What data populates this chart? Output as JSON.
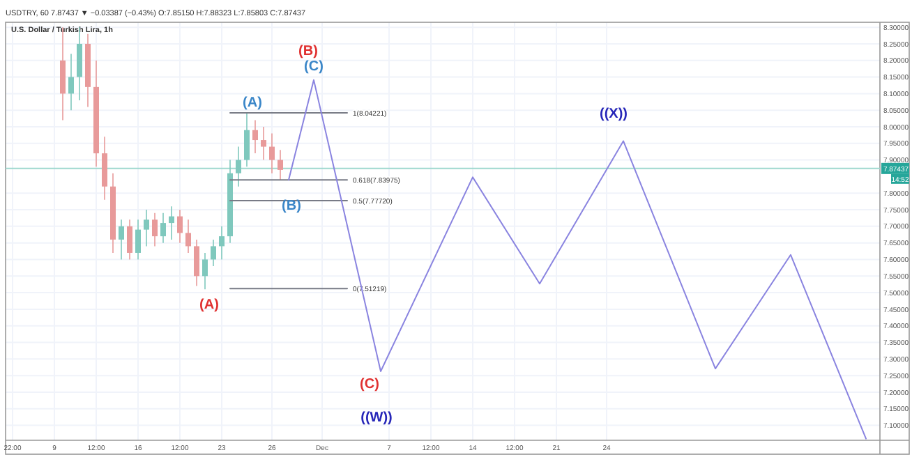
{
  "chart_data": {
    "type": "candlestick",
    "title": "U.S. Dollar / Turkish Lira, 1h",
    "annotations": [
      "USDTRY, 60  7.87437 ▼ −0.03387 (−0.43%)  O:7.85150  H:7.88323  L:7.85803  C:7.87437",
      "14:52",
      "(B)",
      "(C)",
      "(A)",
      "(B)",
      "(A)",
      "(C)",
      "((W))",
      "((X))"
    ],
    "categories": [
      null,
      "22:00",
      null,
      null,
      null,
      null,
      "9",
      null,
      null,
      null,
      null,
      "12:00",
      null,
      null,
      null,
      null,
      "16",
      null,
      null,
      null,
      null,
      "12:00",
      null,
      null,
      null,
      null,
      "23",
      null,
      null,
      null,
      null,
      null,
      "26",
      null,
      null,
      null,
      null,
      null,
      "Dec",
      null,
      null,
      null,
      null,
      null,
      null,
      null,
      "7",
      null,
      null,
      null,
      null,
      "12:00",
      null,
      null,
      null,
      null,
      "14",
      null,
      null,
      null,
      null,
      "12:00",
      null,
      null,
      null,
      null,
      "21",
      null,
      null,
      null,
      null,
      null,
      "24",
      null,
      null,
      null,
      null,
      null,
      null,
      null,
      null,
      null,
      null,
      null,
      null,
      null,
      null,
      null,
      null,
      null,
      null,
      null,
      null,
      null,
      null,
      null,
      null,
      null,
      null,
      null,
      null,
      null,
      null,
      null,
      null
    ],
    "ohlc": [
      null,
      null,
      null,
      null,
      null,
      null,
      null,
      [
        8.2,
        8.3,
        8.02,
        8.1
      ],
      [
        8.1,
        8.22,
        8.05,
        8.15
      ],
      [
        8.15,
        8.3,
        8.08,
        8.25
      ],
      [
        8.25,
        8.28,
        8.06,
        8.12
      ],
      [
        8.12,
        8.2,
        7.88,
        7.92
      ],
      [
        7.92,
        7.97,
        7.78,
        7.82
      ],
      [
        7.82,
        7.86,
        7.62,
        7.66
      ],
      [
        7.66,
        7.72,
        7.6,
        7.7
      ],
      [
        7.7,
        7.72,
        7.6,
        7.62
      ],
      [
        7.62,
        7.72,
        7.6,
        7.69
      ],
      [
        7.69,
        7.75,
        7.64,
        7.72
      ],
      [
        7.72,
        7.74,
        7.64,
        7.67
      ],
      [
        7.67,
        7.74,
        7.65,
        7.71
      ],
      [
        7.71,
        7.76,
        7.66,
        7.73
      ],
      [
        7.73,
        7.75,
        7.65,
        7.68
      ],
      [
        7.68,
        7.72,
        7.62,
        7.64
      ],
      [
        7.64,
        7.66,
        7.52,
        7.55
      ],
      [
        7.55,
        7.62,
        7.51,
        7.6
      ],
      [
        7.6,
        7.66,
        7.58,
        7.64
      ],
      [
        7.64,
        7.7,
        7.6,
        7.67
      ],
      [
        7.67,
        7.9,
        7.65,
        7.86
      ],
      [
        7.86,
        7.94,
        7.82,
        7.9
      ],
      [
        7.9,
        8.04,
        7.88,
        7.99
      ],
      [
        7.99,
        8.02,
        7.92,
        7.96
      ],
      [
        7.96,
        8.0,
        7.9,
        7.94
      ],
      [
        7.94,
        7.98,
        7.86,
        7.9
      ],
      [
        7.9,
        7.93,
        7.84,
        7.87
      ],
      null,
      null,
      null,
      null,
      null,
      null,
      null,
      null,
      null,
      null,
      null,
      null,
      null,
      null,
      null,
      null,
      null,
      null,
      null,
      null,
      null,
      null,
      null,
      null,
      null,
      null,
      null,
      null,
      null,
      null,
      null,
      null,
      null,
      null,
      null,
      null,
      null,
      null,
      null,
      null,
      null,
      null,
      null,
      null,
      null,
      null,
      null,
      null,
      null,
      null,
      null,
      null,
      null,
      null,
      null,
      null,
      null,
      null,
      null,
      null,
      null,
      null,
      null,
      null,
      null,
      null,
      null,
      null,
      null,
      null,
      null
    ],
    "colors": [
      null,
      null,
      null,
      null,
      null,
      null,
      null,
      "#e89a9a",
      "#7fc8bd",
      "#7fc8bd",
      "#e89a9a",
      "#e89a9a",
      "#e89a9a",
      "#e89a9a",
      "#7fc8bd",
      "#e89a9a",
      "#7fc8bd",
      "#7fc8bd",
      "#e89a9a",
      "#7fc8bd",
      "#7fc8bd",
      "#e89a9a",
      "#e89a9a",
      "#e89a9a",
      "#7fc8bd",
      "#7fc8bd",
      "#7fc8bd",
      "#7fc8bd",
      "#7fc8bd",
      "#7fc8bd",
      "#e89a9a",
      "#e89a9a",
      "#e89a9a",
      "#e89a9a",
      null,
      null,
      null,
      null,
      null,
      null,
      null,
      null,
      null,
      null,
      null,
      null,
      null,
      null,
      null,
      null,
      null,
      null,
      null,
      null,
      null,
      null,
      null,
      null,
      null,
      null,
      null,
      null,
      null,
      null,
      null,
      null,
      null,
      null,
      null,
      null,
      null,
      null,
      null,
      null,
      null,
      null,
      null,
      null,
      null,
      null,
      null,
      null,
      null,
      null,
      null,
      null,
      null,
      null,
      null,
      null,
      null,
      null,
      null,
      null,
      null,
      null,
      null,
      null,
      null,
      null,
      null,
      null,
      null,
      null,
      null
    ],
    "series": [
      {
        "type": "line",
        "name": "1(8.04221)",
        "color": "#787b86",
        "values": [
          null,
          null,
          null,
          null,
          null,
          null,
          null,
          null,
          null,
          null,
          null,
          null,
          null,
          null,
          null,
          null,
          null,
          null,
          null,
          null,
          null,
          null,
          null,
          null,
          null,
          null,
          null,
          8.04221,
          null,
          null,
          null,
          null,
          null,
          null,
          null,
          null,
          null,
          null,
          null,
          null,
          null,
          8.04221,
          null,
          null,
          null,
          null,
          null,
          null,
          null,
          null,
          null,
          null,
          null,
          null,
          null,
          null,
          null,
          null,
          null,
          null,
          null,
          null,
          null,
          null,
          null,
          null,
          null,
          null,
          null,
          null,
          null,
          null,
          null,
          null,
          null,
          null,
          null,
          null,
          null,
          null,
          null,
          null,
          null,
          null,
          null,
          null,
          null,
          null,
          null,
          null,
          null,
          null,
          null,
          null,
          null,
          null,
          null,
          null,
          null,
          null,
          null,
          null,
          null,
          null,
          null
        ]
      },
      {
        "type": "line",
        "name": "0.618(7.83975)",
        "color": "#787b86",
        "values": [
          null,
          null,
          null,
          null,
          null,
          null,
          null,
          null,
          null,
          null,
          null,
          null,
          null,
          null,
          null,
          null,
          null,
          null,
          null,
          null,
          null,
          null,
          null,
          null,
          null,
          null,
          null,
          7.83975,
          null,
          null,
          null,
          null,
          null,
          null,
          null,
          null,
          null,
          null,
          null,
          null,
          null,
          7.83975,
          null,
          null,
          null,
          null,
          null,
          null,
          null,
          null,
          null,
          null,
          null,
          null,
          null,
          null,
          null,
          null,
          null,
          null,
          null,
          null,
          null,
          null,
          null,
          null,
          null,
          null,
          null,
          null,
          null,
          null,
          null,
          null,
          null,
          null,
          null,
          null,
          null,
          null,
          null,
          null,
          null,
          null,
          null,
          null,
          null,
          null,
          null,
          null,
          null,
          null,
          null,
          null,
          null,
          null,
          null,
          null,
          null,
          null,
          null,
          null,
          null,
          null,
          null
        ]
      },
      {
        "type": "line",
        "name": "0.5(7.77720)",
        "color": "#787b86",
        "values": [
          null,
          null,
          null,
          null,
          null,
          null,
          null,
          null,
          null,
          null,
          null,
          null,
          null,
          null,
          null,
          null,
          null,
          null,
          null,
          null,
          null,
          null,
          null,
          null,
          null,
          null,
          null,
          7.7772,
          null,
          null,
          null,
          null,
          null,
          null,
          null,
          null,
          null,
          null,
          null,
          null,
          null,
          7.7772,
          null,
          null,
          null,
          null,
          null,
          null,
          null,
          null,
          null,
          null,
          null,
          null,
          null,
          null,
          null,
          null,
          null,
          null,
          null,
          null,
          null,
          null,
          null,
          null,
          null,
          null,
          null,
          null,
          null,
          null,
          null,
          null,
          null,
          null,
          null,
          null,
          null,
          null,
          null,
          null,
          null,
          null,
          null,
          null,
          null,
          null,
          null,
          null,
          null,
          null,
          null,
          null,
          null,
          null,
          null,
          null,
          null,
          null,
          null,
          null,
          null,
          null,
          null
        ]
      },
      {
        "type": "line",
        "name": "0(7.51219)",
        "color": "#787b86",
        "values": [
          null,
          null,
          null,
          null,
          null,
          null,
          null,
          null,
          null,
          null,
          null,
          null,
          null,
          null,
          null,
          null,
          null,
          null,
          null,
          null,
          null,
          null,
          null,
          null,
          null,
          null,
          null,
          7.51219,
          null,
          null,
          null,
          null,
          null,
          null,
          null,
          null,
          null,
          null,
          null,
          null,
          null,
          7.51219,
          null,
          null,
          null,
          null,
          null,
          null,
          null,
          null,
          null,
          null,
          null,
          null,
          null,
          null,
          null,
          null,
          null,
          null,
          null,
          null,
          null,
          null,
          null,
          null,
          null,
          null,
          null,
          null,
          null,
          null,
          null,
          null,
          null,
          null,
          null,
          null,
          null,
          null,
          null,
          null,
          null,
          null,
          null,
          null,
          null,
          null,
          null,
          null,
          null,
          null,
          null,
          null,
          null,
          null,
          null,
          null,
          null,
          null,
          null,
          null,
          null,
          null,
          null
        ]
      },
      {
        "type": "line",
        "color": "#8a84e0",
        "values": [
          null,
          null,
          null,
          null,
          null,
          null,
          null,
          null,
          null,
          null,
          null,
          null,
          null,
          null,
          null,
          null,
          null,
          null,
          null,
          null,
          null,
          null,
          null,
          null,
          null,
          null,
          null,
          null,
          null,
          null,
          null,
          null,
          null,
          null,
          7.84,
          null,
          null,
          8.141,
          null,
          null,
          null,
          null,
          null,
          null,
          null,
          7.263,
          null,
          null,
          null,
          null,
          null,
          null,
          null,
          null,
          null,
          null,
          7.848,
          null,
          null,
          null,
          null,
          null,
          null,
          null,
          7.527,
          null,
          null,
          null,
          null,
          null,
          null,
          null,
          null,
          null,
          7.957,
          null,
          null,
          null,
          null,
          null,
          null,
          null,
          null,
          null,
          null,
          7.271,
          null,
          null,
          null,
          null,
          null,
          null,
          null,
          null,
          7.614,
          null,
          null,
          null,
          null,
          null,
          null,
          null,
          null,
          7.06,
          null
        ]
      }
    ],
    "ref_lines": [
      {
        "axis": "y",
        "value": 7.87437,
        "label": "7.87437",
        "color": "#9fd8cf"
      }
    ],
    "ylim": [
      7.055,
      8.315
    ],
    "yticks": [
      {
        "value": 7.1,
        "label": "7.10000"
      },
      {
        "value": 7.15,
        "label": "7.15000"
      },
      {
        "value": 7.2,
        "label": "7.20000"
      },
      {
        "value": 7.25,
        "label": "7.25000"
      },
      {
        "value": 7.3,
        "label": "7.30000"
      },
      {
        "value": 7.35,
        "label": "7.35000"
      },
      {
        "value": 7.4,
        "label": "7.40000"
      },
      {
        "value": 7.45,
        "label": "7.45000"
      },
      {
        "value": 7.5,
        "label": "7.50000"
      },
      {
        "value": 7.55,
        "label": "7.55000"
      },
      {
        "value": 7.6,
        "label": "7.60000"
      },
      {
        "value": 7.65,
        "label": "7.65000"
      },
      {
        "value": 7.7,
        "label": "7.70000"
      },
      {
        "value": 7.75,
        "label": "7.75000"
      },
      {
        "value": 7.8,
        "label": "7.80000"
      },
      {
        "value": 7.9,
        "label": "7.90000"
      },
      {
        "value": 7.95,
        "label": "7.95000"
      },
      {
        "value": 8.0,
        "label": "8.00000"
      },
      {
        "value": 8.05,
        "label": "8.05000"
      },
      {
        "value": 8.1,
        "label": "8.10000"
      },
      {
        "value": 8.15,
        "label": "8.15000"
      },
      {
        "value": 8.2,
        "label": "8.20000"
      },
      {
        "value": 8.25,
        "label": "8.25000"
      },
      {
        "value": 8.3,
        "label": "8.30000"
      }
    ],
    "grid": true
  }
}
